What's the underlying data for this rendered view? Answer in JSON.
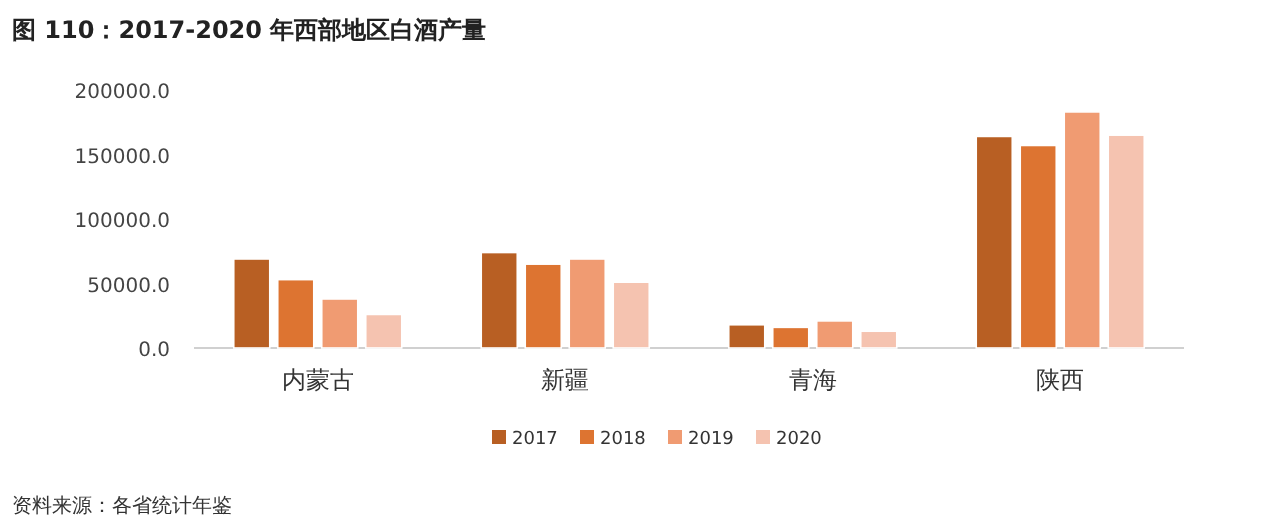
{
  "chart_data": {
    "type": "bar",
    "title": "图 110：2017-2020 年西部地区白酒产量",
    "categories": [
      "内蒙古",
      "新疆",
      "青海",
      "陕西"
    ],
    "series": [
      {
        "name": "2017",
        "color": "#b85f23",
        "values": [
          69000,
          74000,
          18000,
          164000
        ]
      },
      {
        "name": "2018",
        "color": "#dd7431",
        "values": [
          53000,
          65000,
          16000,
          157000
        ]
      },
      {
        "name": "2019",
        "color": "#f09b72",
        "values": [
          38000,
          69000,
          21000,
          183000
        ]
      },
      {
        "name": "2020",
        "color": "#f5c3b0",
        "values": [
          26000,
          51000,
          13000,
          165000
        ]
      }
    ],
    "ylim": [
      0,
      200000
    ],
    "yticks": [
      {
        "value": 0,
        "label": "0.0"
      },
      {
        "value": 50000,
        "label": "50000.0"
      },
      {
        "value": 100000,
        "label": "100000.0"
      },
      {
        "value": 150000,
        "label": "150000.0"
      },
      {
        "value": 200000,
        "label": "200000.0"
      }
    ],
    "grid": false,
    "legend": "bottom",
    "annotations": [
      "资料来源：各省统计年鉴"
    ]
  }
}
